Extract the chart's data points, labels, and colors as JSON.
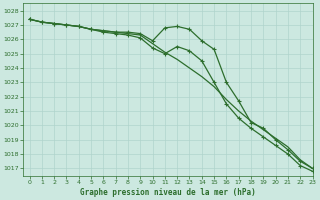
{
  "title": "Graphe pression niveau de la mer (hPa)",
  "background_color": "#cce8e0",
  "grid_color": "#b0d4cc",
  "line_color": "#2d6e2d",
  "xlim": [
    -0.5,
    23
  ],
  "ylim": [
    1016.5,
    1028.5
  ],
  "yticks": [
    1017,
    1018,
    1019,
    1020,
    1021,
    1022,
    1023,
    1024,
    1025,
    1026,
    1027,
    1028
  ],
  "xticks": [
    0,
    1,
    2,
    3,
    4,
    5,
    6,
    7,
    8,
    9,
    10,
    11,
    12,
    13,
    14,
    15,
    16,
    17,
    18,
    19,
    20,
    21,
    22,
    23
  ],
  "series": [
    {
      "y": [
        1027.4,
        1027.2,
        1027.1,
        1027.0,
        1026.9,
        1026.7,
        1026.6,
        1026.5,
        1026.5,
        1026.4,
        1025.9,
        1026.8,
        1026.9,
        1026.7,
        1025.9,
        1025.3,
        1023.0,
        1021.7,
        1020.2,
        1019.8,
        1019.0,
        1018.3,
        1017.5,
        1017.0
      ],
      "marker": "+",
      "linewidth": 0.9
    },
    {
      "y": [
        1027.4,
        1027.2,
        1027.1,
        1027.0,
        1026.9,
        1026.7,
        1026.6,
        1026.5,
        1026.4,
        1026.3,
        1025.7,
        1025.1,
        1024.6,
        1024.0,
        1023.4,
        1022.7,
        1021.8,
        1021.0,
        1020.3,
        1019.7,
        1019.1,
        1018.5,
        1017.6,
        1017.0
      ],
      "marker": null,
      "linewidth": 0.9
    },
    {
      "y": [
        1027.4,
        1027.2,
        1027.1,
        1027.0,
        1026.9,
        1026.7,
        1026.5,
        1026.4,
        1026.3,
        1026.1,
        1025.4,
        1025.0,
        1025.5,
        1025.2,
        1024.5,
        1023.0,
        1021.5,
        1020.5,
        1019.8,
        1019.2,
        1018.6,
        1018.0,
        1017.2,
        1016.8
      ],
      "marker": "+",
      "linewidth": 0.9
    }
  ]
}
